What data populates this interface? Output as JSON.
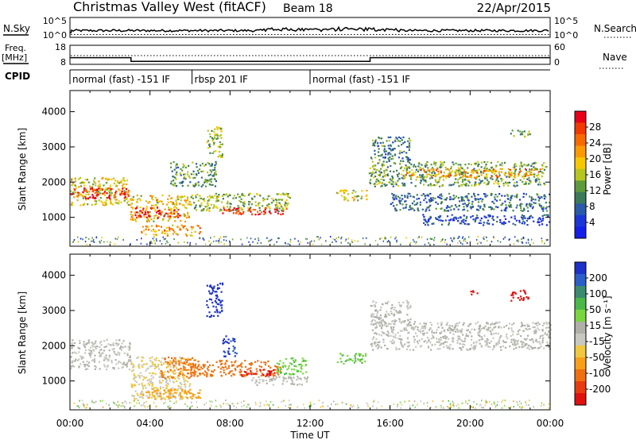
{
  "header": {
    "title": "Christmas Valley West (fitACF)",
    "beam": "Beam 18",
    "date": "22/Apr/2015"
  },
  "top_panels": {
    "nsky_label": "N.Sky",
    "nsearch_label": "N.Search",
    "noise_ticks": [
      "10^5",
      "10^0"
    ],
    "freq_label_1": "Freq.",
    "freq_label_2": "[MHz]",
    "freq_ticks": [
      "18",
      "8"
    ],
    "nave_label": "Nave",
    "nave_ticks": [
      "60",
      "0"
    ],
    "cpid_label": "CPID",
    "cpid_segments": [
      {
        "label": "normal (fast) -151 IF",
        "start_h": 0,
        "end_h": 6.1
      },
      {
        "label": "rbsp 201 IF",
        "start_h": 6.1,
        "end_h": 12.0
      },
      {
        "label": "normal (fast) -151 IF",
        "start_h": 12.0,
        "end_h": 24
      }
    ],
    "freq_profile_mhz": [
      {
        "t": 0,
        "v": 11.5
      },
      {
        "t": 3.05,
        "v": 11.5
      },
      {
        "t": 3.05,
        "v": 9.6
      },
      {
        "t": 15.0,
        "v": 9.6
      },
      {
        "t": 15.0,
        "v": 11.5
      },
      {
        "t": 24,
        "v": 11.5
      }
    ]
  },
  "colorbar_power": {
    "label": "Power [dB]",
    "ticks": [
      "28",
      "24",
      "20",
      "16",
      "12",
      "8",
      "4"
    ],
    "colors": [
      "#e8001a",
      "#f23a00",
      "#f86a00",
      "#fb9a00",
      "#f6c800",
      "#b7c61e",
      "#5f9a3c",
      "#3a7a5a",
      "#2a5aa8",
      "#1d36d8",
      "#1420e8"
    ]
  },
  "colorbar_velocity": {
    "label": "Velocity [m s⁻¹]",
    "ticks": [
      "200",
      "100",
      "50",
      "15",
      "-15",
      "-50",
      "-100",
      "-200"
    ],
    "colors": [
      "#1c32c8",
      "#2a5ec8",
      "#3c8a70",
      "#4ab848",
      "#7ad640",
      "#b0b0a8",
      "#c8c8c0",
      "#f0c840",
      "#f8a018",
      "#f07010",
      "#e83c10",
      "#e01010"
    ]
  },
  "chart_data": [
    {
      "type": "heatmap",
      "title": "Power",
      "ylabel": "Slant Range [km]",
      "xlabel": "",
      "x_unit": "hours UT",
      "xlim": [
        0,
        24
      ],
      "ylim": [
        180,
        4600
      ],
      "yticks": [
        1000,
        2000,
        3000,
        4000
      ],
      "bands": [
        {
          "t0": 0.0,
          "t1": 3.0,
          "r0": 1350,
          "r1": 2150,
          "level": 0.55
        },
        {
          "t0": 0.0,
          "t1": 3.0,
          "r0": 1550,
          "r1": 1850,
          "level": 0.95
        },
        {
          "t0": 3.0,
          "t1": 6.0,
          "r0": 900,
          "r1": 1650,
          "level": 0.6
        },
        {
          "t0": 3.2,
          "t1": 5.5,
          "r0": 1000,
          "r1": 1300,
          "level": 0.95
        },
        {
          "t0": 3.5,
          "t1": 6.5,
          "r0": 500,
          "r1": 800,
          "level": 0.7
        },
        {
          "t0": 5.0,
          "t1": 7.3,
          "r0": 1900,
          "r1": 2600,
          "level": 0.35
        },
        {
          "t0": 6.8,
          "t1": 7.6,
          "r0": 2700,
          "r1": 3600,
          "level": 0.45
        },
        {
          "t0": 6.0,
          "t1": 11.0,
          "r0": 1200,
          "r1": 1700,
          "level": 0.45
        },
        {
          "t0": 7.5,
          "t1": 10.8,
          "r0": 1100,
          "r1": 1300,
          "level": 0.95
        },
        {
          "t0": 13.3,
          "t1": 14.8,
          "r0": 1500,
          "r1": 1800,
          "level": 0.55
        },
        {
          "t0": 14.9,
          "t1": 23.8,
          "r0": 1900,
          "r1": 2600,
          "level": 0.4
        },
        {
          "t0": 16.5,
          "t1": 23.5,
          "r0": 2150,
          "r1": 2400,
          "level": 0.7
        },
        {
          "t0": 15.0,
          "t1": 17.0,
          "r0": 2600,
          "r1": 3300,
          "level": 0.3
        },
        {
          "t0": 16.0,
          "t1": 24.0,
          "r0": 1200,
          "r1": 1700,
          "level": 0.25
        },
        {
          "t0": 17.5,
          "t1": 24.0,
          "r0": 800,
          "r1": 1100,
          "level": 0.15
        },
        {
          "t0": 22.0,
          "t1": 23.0,
          "r0": 3300,
          "r1": 3500,
          "level": 0.45
        }
      ]
    },
    {
      "type": "heatmap",
      "title": "Velocity",
      "ylabel": "Slant Range [km]",
      "xlabel": "Time UT",
      "x_unit": "hours UT",
      "xlim": [
        0,
        24
      ],
      "ylim": [
        180,
        4600
      ],
      "yticks": [
        1000,
        2000,
        3000,
        4000
      ],
      "xticks": [
        "00:00",
        "04:00",
        "08:00",
        "12:00",
        "16:00",
        "20:00",
        "00:00"
      ],
      "bands": [
        {
          "t0": 0.0,
          "t1": 3.0,
          "r0": 1350,
          "r1": 2200,
          "v": 0
        },
        {
          "t0": 3.0,
          "t1": 6.0,
          "r0": 500,
          "r1": 1700,
          "v": -20
        },
        {
          "t0": 4.5,
          "t1": 6.5,
          "r0": 1100,
          "r1": 1700,
          "v": -90
        },
        {
          "t0": 3.5,
          "t1": 6.5,
          "r0": 500,
          "r1": 800,
          "v": -60
        },
        {
          "t0": 6.0,
          "t1": 10.5,
          "r0": 1150,
          "r1": 1600,
          "v": -110
        },
        {
          "t0": 8.5,
          "t1": 10.2,
          "r0": 1150,
          "r1": 1350,
          "v": -220
        },
        {
          "t0": 6.8,
          "t1": 7.6,
          "r0": 2800,
          "r1": 3800,
          "v": 210
        },
        {
          "t0": 7.6,
          "t1": 8.3,
          "r0": 1700,
          "r1": 2300,
          "v": 180
        },
        {
          "t0": 10.3,
          "t1": 11.8,
          "r0": 1200,
          "r1": 1700,
          "v": 40
        },
        {
          "t0": 9.0,
          "t1": 12.0,
          "r0": 900,
          "r1": 1150,
          "v": 0
        },
        {
          "t0": 13.3,
          "t1": 14.8,
          "r0": 1500,
          "r1": 1800,
          "v": 40
        },
        {
          "t0": 15.0,
          "t1": 24.0,
          "r0": 1900,
          "r1": 2700,
          "v": 0
        },
        {
          "t0": 15.0,
          "t1": 17.0,
          "r0": 2600,
          "r1": 3300,
          "v": 0
        },
        {
          "t0": 22.0,
          "t1": 23.0,
          "r0": 3300,
          "r1": 3600,
          "v": -220
        },
        {
          "t0": 20.0,
          "t1": 20.4,
          "r0": 3450,
          "r1": 3600,
          "v": -220
        }
      ]
    }
  ]
}
